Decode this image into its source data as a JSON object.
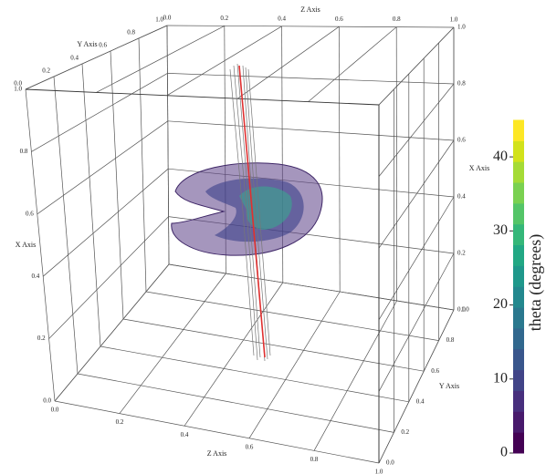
{
  "chart_data": {
    "type": "volume3d",
    "axes": {
      "z": {
        "label": "Z Axis",
        "ticks": [
          {
            "value": 0,
            "label": "0.0"
          },
          0.2,
          0.4,
          0.6,
          0.8,
          {
            "value": 1,
            "label": "1.0"
          }
        ]
      },
      "x": {
        "label": "X Axis",
        "ticks": [
          {
            "value": 0,
            "label": "0.0"
          },
          0.2,
          0.4,
          0.6,
          0.8,
          {
            "value": 1,
            "label": "1.0"
          }
        ]
      },
      "y": {
        "label": "Y Axis",
        "ticks": [
          {
            "value": 0,
            "label": "0.0"
          },
          0.2,
          0.4,
          0.6,
          0.8,
          {
            "value": 1,
            "label": "1.0"
          }
        ]
      }
    },
    "colorbar": {
      "label": "theta (degrees)",
      "lim": [
        0,
        45
      ],
      "ticks": [
        0,
        10,
        20,
        30,
        40
      ],
      "colors": [
        "#440154",
        "#481a6c",
        "#472f7d",
        "#414487",
        "#39568c",
        "#31688e",
        "#2a788e",
        "#23888e",
        "#1f988b",
        "#22a884",
        "#35b779",
        "#54c568",
        "#7ad151",
        "#a5db36",
        "#d2e21b",
        "#fde725"
      ]
    }
  }
}
